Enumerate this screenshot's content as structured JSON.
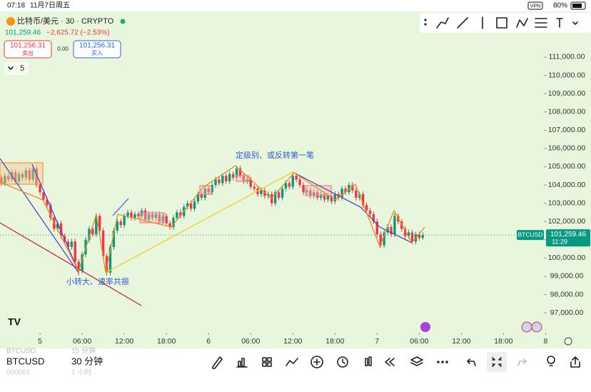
{
  "status": {
    "time": "07:18",
    "date": "11月7日周五",
    "vpn": "VPN",
    "battery": "80%"
  },
  "header": {
    "symbol": "比特币/美元 · 30 · CRYPTO",
    "price": "101,259.46",
    "change": "−2,625.72 (−2.53%)",
    "sell": {
      "price": "101,256.31",
      "label": "卖出"
    },
    "spread": "0.00",
    "buy": {
      "price": "101,256.31",
      "label": "买入"
    },
    "count": "5"
  },
  "bottom": {
    "symbol": "BTCUSD",
    "interval": "30 分钟",
    "ghost": [
      "BTCUSD",
      "15 分钟",
      "000001",
      "1 小时"
    ]
  },
  "chart_data": {
    "type": "candlestick",
    "title": "比特币/美元 · 30 · CRYPTO",
    "up_color": "#089981",
    "down_color": "#f23645",
    "xlim": [
      -0.4,
      154.1
    ],
    "ylim": [
      95950,
      113500
    ],
    "xticks": [
      {
        "value": 11,
        "label": "5"
      },
      {
        "value": 23,
        "label": "06:00"
      },
      {
        "value": 35,
        "label": "12:00"
      },
      {
        "value": 47,
        "label": "18:00"
      },
      {
        "value": 59,
        "label": "6"
      },
      {
        "value": 71,
        "label": "06:00"
      },
      {
        "value": 83,
        "label": "12:00"
      },
      {
        "value": 95,
        "label": "18:00"
      },
      {
        "value": 107,
        "label": "7"
      },
      {
        "value": 119,
        "label": "06:00"
      },
      {
        "value": 131,
        "label": "12:00"
      },
      {
        "value": 143,
        "label": "18:00"
      },
      {
        "value": 155,
        "label": "8"
      }
    ],
    "yticks": [
      {
        "value": 97000,
        "label": "97,000.00"
      },
      {
        "value": 98000,
        "label": "98,000.00"
      },
      {
        "value": 99000,
        "label": "99,000.00"
      },
      {
        "value": 100000,
        "label": "100,000.00"
      },
      {
        "value": 101000,
        "label": "101,000.00"
      },
      {
        "value": 102000,
        "label": "102,000.00"
      },
      {
        "value": 103000,
        "label": "103,000.00"
      },
      {
        "value": 104000,
        "label": "104,000.00"
      },
      {
        "value": 105000,
        "label": "105,000.00"
      },
      {
        "value": 106000,
        "label": "106,000.00"
      },
      {
        "value": 107000,
        "label": "107,000.00"
      },
      {
        "value": 108000,
        "label": "108,000.00"
      },
      {
        "value": 109000,
        "label": "109,000.00"
      },
      {
        "value": 110000,
        "label": "110,000.00"
      },
      {
        "value": 111000,
        "label": "111,000.00"
      }
    ],
    "last_price_label": "101,259.46",
    "last_time": "11:29",
    "symbol_tag": "BTCUSD",
    "annotations": [
      "定级别、或反转第一笔",
      "小转大、速率共振"
    ],
    "candles": [
      [
        104400,
        104550,
        103950,
        104100
      ],
      [
        104100,
        104650,
        103950,
        104500
      ],
      [
        104500,
        104650,
        104150,
        104300
      ],
      [
        104300,
        104850,
        104150,
        104700
      ],
      [
        104700,
        104850,
        104050,
        104200
      ],
      [
        104200,
        104750,
        104050,
        104600
      ],
      [
        104600,
        104750,
        104250,
        104400
      ],
      [
        104400,
        104950,
        104250,
        104800
      ],
      [
        104800,
        104950,
        104150,
        104300
      ],
      [
        104300,
        105050,
        104150,
        104900
      ],
      [
        104900,
        105050,
        103850,
        104000
      ],
      [
        104000,
        104150,
        103450,
        103600
      ],
      [
        103600,
        103750,
        103050,
        103200
      ],
      [
        103200,
        103350,
        102750,
        102900
      ],
      [
        102900,
        103050,
        102050,
        102200
      ],
      [
        102200,
        102350,
        101450,
        101600
      ],
      [
        101600,
        102050,
        101450,
        101900
      ],
      [
        101900,
        102050,
        101050,
        101200
      ],
      [
        101200,
        101350,
        100750,
        100900
      ],
      [
        100900,
        101050,
        100450,
        100600
      ],
      [
        100600,
        101050,
        100450,
        100900
      ],
      [
        100900,
        101050,
        99650,
        99800
      ],
      [
        99800,
        99950,
        99050,
        99300
      ],
      [
        99300,
        100350,
        99150,
        100200
      ],
      [
        100200,
        101150,
        100050,
        101000
      ],
      [
        101000,
        101750,
        100850,
        101600
      ],
      [
        101600,
        101750,
        101150,
        101300
      ],
      [
        101300,
        102450,
        101150,
        102300
      ],
      [
        102300,
        102450,
        101350,
        101500
      ],
      [
        101500,
        101650,
        99950,
        100100
      ],
      [
        100100,
        100250,
        99050,
        99200
      ],
      [
        99200,
        100750,
        99050,
        100600
      ],
      [
        100600,
        101650,
        100450,
        101500
      ],
      [
        101500,
        102150,
        101350,
        102000
      ],
      [
        102000,
        102150,
        101650,
        101800
      ],
      [
        101800,
        102450,
        101650,
        102300
      ],
      [
        102300,
        102650,
        102150,
        102500
      ],
      [
        102500,
        102650,
        102050,
        102200
      ],
      [
        102200,
        102550,
        102050,
        102400
      ],
      [
        102400,
        102550,
        102150,
        102300
      ],
      [
        102300,
        102750,
        102150,
        102600
      ],
      [
        102600,
        102750,
        101950,
        102100
      ],
      [
        102100,
        102550,
        101950,
        102400
      ],
      [
        102400,
        102550,
        102050,
        102200
      ],
      [
        102200,
        102550,
        102050,
        102400
      ],
      [
        102400,
        102550,
        101850,
        102000
      ],
      [
        102000,
        102450,
        101850,
        102300
      ],
      [
        102300,
        102450,
        101750,
        101900
      ],
      [
        101900,
        102050,
        101550,
        101700
      ],
      [
        101700,
        102350,
        101550,
        102200
      ],
      [
        102200,
        102650,
        102050,
        102500
      ],
      [
        102500,
        102650,
        102150,
        102300
      ],
      [
        102300,
        102950,
        102150,
        102800
      ],
      [
        102800,
        103150,
        102650,
        103000
      ],
      [
        103000,
        103150,
        102550,
        102700
      ],
      [
        102700,
        103250,
        102550,
        103100
      ],
      [
        103100,
        103650,
        102950,
        103500
      ],
      [
        103500,
        103650,
        103150,
        103300
      ],
      [
        103300,
        103950,
        103150,
        103800
      ],
      [
        103800,
        103950,
        103450,
        103600
      ],
      [
        103600,
        104150,
        103450,
        104000
      ],
      [
        104000,
        104450,
        103850,
        104300
      ],
      [
        104300,
        104450,
        103950,
        104100
      ],
      [
        104100,
        104650,
        103950,
        104500
      ],
      [
        104500,
        104650,
        104050,
        104200
      ],
      [
        104200,
        104750,
        104050,
        104600
      ],
      [
        104600,
        104750,
        104250,
        104400
      ],
      [
        104400,
        105050,
        104250,
        104900
      ],
      [
        104900,
        105050,
        104350,
        104500
      ],
      [
        104500,
        104650,
        104050,
        104200
      ],
      [
        104200,
        104450,
        104050,
        104300
      ],
      [
        104300,
        104450,
        103750,
        103900
      ],
      [
        103900,
        104050,
        103650,
        103800
      ],
      [
        103800,
        103950,
        103350,
        103500
      ],
      [
        103500,
        103850,
        103350,
        103700
      ],
      [
        103700,
        103850,
        103250,
        103400
      ],
      [
        103400,
        103650,
        103250,
        103500
      ],
      [
        103500,
        103650,
        102850,
        103000
      ],
      [
        103000,
        103750,
        102850,
        103600
      ],
      [
        103600,
        103750,
        103150,
        103300
      ],
      [
        103300,
        103950,
        103150,
        103800
      ],
      [
        103800,
        104250,
        103650,
        104100
      ],
      [
        104100,
        104250,
        103750,
        103900
      ],
      [
        103900,
        104650,
        103750,
        104500
      ],
      [
        104500,
        104650,
        104150,
        104300
      ],
      [
        104300,
        104450,
        103850,
        104000
      ],
      [
        104000,
        104150,
        103450,
        103600
      ],
      [
        103600,
        103850,
        103450,
        103700
      ],
      [
        103700,
        103850,
        103250,
        103400
      ],
      [
        103400,
        103750,
        103250,
        103600
      ],
      [
        103600,
        103750,
        103150,
        103300
      ],
      [
        103300,
        103650,
        103150,
        103500
      ],
      [
        103500,
        103650,
        103050,
        103200
      ],
      [
        103200,
        103550,
        103050,
        103400
      ],
      [
        103400,
        103550,
        102950,
        103100
      ],
      [
        103100,
        103650,
        102950,
        103500
      ],
      [
        103500,
        103650,
        103150,
        103300
      ],
      [
        103300,
        103950,
        103150,
        103800
      ],
      [
        103800,
        103950,
        103450,
        103600
      ],
      [
        103600,
        104150,
        103450,
        104000
      ],
      [
        104000,
        104150,
        103550,
        103700
      ],
      [
        103700,
        103850,
        103150,
        103300
      ],
      [
        103300,
        103650,
        103150,
        103500
      ],
      [
        103500,
        103650,
        102750,
        102900
      ],
      [
        102900,
        103050,
        102450,
        102600
      ],
      [
        102600,
        102750,
        102250,
        102400
      ],
      [
        102400,
        102550,
        101850,
        102000
      ],
      [
        102000,
        102150,
        101150,
        101300
      ],
      [
        101300,
        101450,
        100550,
        100700
      ],
      [
        100700,
        101550,
        100550,
        101400
      ],
      [
        101400,
        101850,
        101250,
        101700
      ],
      [
        101700,
        101850,
        101150,
        101300
      ],
      [
        101300,
        102450,
        101150,
        102300
      ],
      [
        102300,
        102450,
        101850,
        102000
      ],
      [
        102000,
        102150,
        101450,
        101600
      ],
      [
        101600,
        101750,
        101050,
        101200
      ],
      [
        101200,
        101550,
        101050,
        101400
      ],
      [
        101400,
        101550,
        100750,
        100900
      ],
      [
        100900,
        101450,
        100750,
        101300
      ],
      [
        101300,
        101450,
        100950,
        101100
      ],
      [
        101100,
        101410,
        101000,
        101259.46
      ]
    ]
  }
}
